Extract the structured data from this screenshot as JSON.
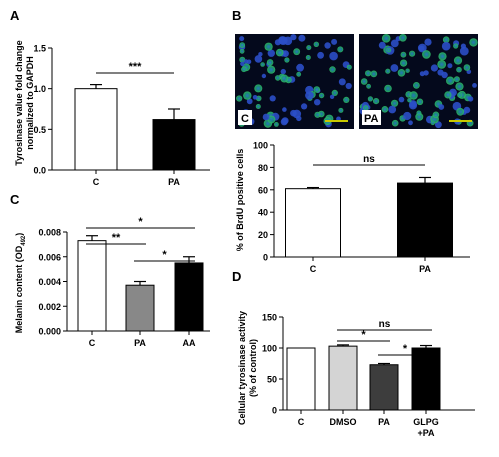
{
  "figure": {
    "panel_letters": [
      "A",
      "B",
      "C",
      "D"
    ],
    "image_labels": [
      "C",
      "PA"
    ],
    "colors": {
      "white": "#ffffff",
      "black": "#000000",
      "gray": "#888888",
      "light_gray": "#d4d4d4",
      "dark_gray": "#3d3d3d",
      "scale_bar": "#c8c800"
    }
  },
  "chart_data": [
    {
      "panel": "A",
      "type": "bar",
      "ylabel": "Tyrosinase value fold change normalized to GAPDH",
      "ylabel_lines": [
        "Tyrosinase value fold change",
        "normalized to GAPDH"
      ],
      "categories": [
        "C",
        "PA"
      ],
      "values": [
        1.0,
        0.62
      ],
      "errors": [
        0.05,
        0.13
      ],
      "fills": [
        "white",
        "black"
      ],
      "ylim": [
        0,
        1.5
      ],
      "yticks": [
        "0.0",
        "0.5",
        "1.0",
        "1.5"
      ],
      "significance": [
        {
          "from": 0,
          "to": 1,
          "label": "***"
        }
      ]
    },
    {
      "panel": "B",
      "type": "bar",
      "ylabel": "% of BrdU positive cells",
      "categories": [
        "C",
        "PA"
      ],
      "values": [
        61,
        66
      ],
      "errors": [
        1,
        5
      ],
      "fills": [
        "white",
        "black"
      ],
      "ylim": [
        0,
        100
      ],
      "yticks": [
        "0",
        "20",
        "40",
        "60",
        "80",
        "100"
      ],
      "significance": [
        {
          "from": 0,
          "to": 1,
          "label": "ns"
        }
      ]
    },
    {
      "panel": "C",
      "type": "bar",
      "ylabel": "Melanin content (OD",
      "ylabel_sub": "492",
      "ylabel_end": ")",
      "categories": [
        "C",
        "PA",
        "AA"
      ],
      "values": [
        0.0073,
        0.0037,
        0.0055
      ],
      "errors": [
        0.0004,
        0.0003,
        0.0005
      ],
      "fills": [
        "white",
        "gray",
        "black"
      ],
      "ylim": [
        0,
        0.008
      ],
      "yticks": [
        "0.000",
        "0.002",
        "0.004",
        "0.006",
        "0.008"
      ],
      "significance": [
        {
          "from": 0,
          "to": 1,
          "label": "**"
        },
        {
          "from": 1,
          "to": 2,
          "label": "*"
        },
        {
          "from": 0,
          "to": 2,
          "label": "*"
        }
      ]
    },
    {
      "panel": "D",
      "type": "bar",
      "ylabel": "Cellular tyrosinase activity (% of control)",
      "ylabel_lines": [
        "Cellular tyrosinase activity",
        "(% of control)"
      ],
      "categories": [
        "C",
        "DMSO",
        "PA",
        "GLPG +PA"
      ],
      "category_lines": [
        [
          "C"
        ],
        [
          "DMSO"
        ],
        [
          "PA"
        ],
        [
          "GLPG",
          "+PA"
        ]
      ],
      "values": [
        100,
        103,
        73,
        100
      ],
      "errors": [
        0,
        2,
        2,
        4
      ],
      "fills": [
        "white",
        "light_gray",
        "dark_gray",
        "black"
      ],
      "ylim": [
        0,
        150
      ],
      "yticks": [
        "0",
        "50",
        "100",
        "150"
      ],
      "significance": [
        {
          "from": 1,
          "to": 2,
          "label": "*"
        },
        {
          "from": 2,
          "to": 3,
          "label": "*"
        },
        {
          "from": 1,
          "to": 3,
          "label": "ns"
        }
      ]
    }
  ]
}
